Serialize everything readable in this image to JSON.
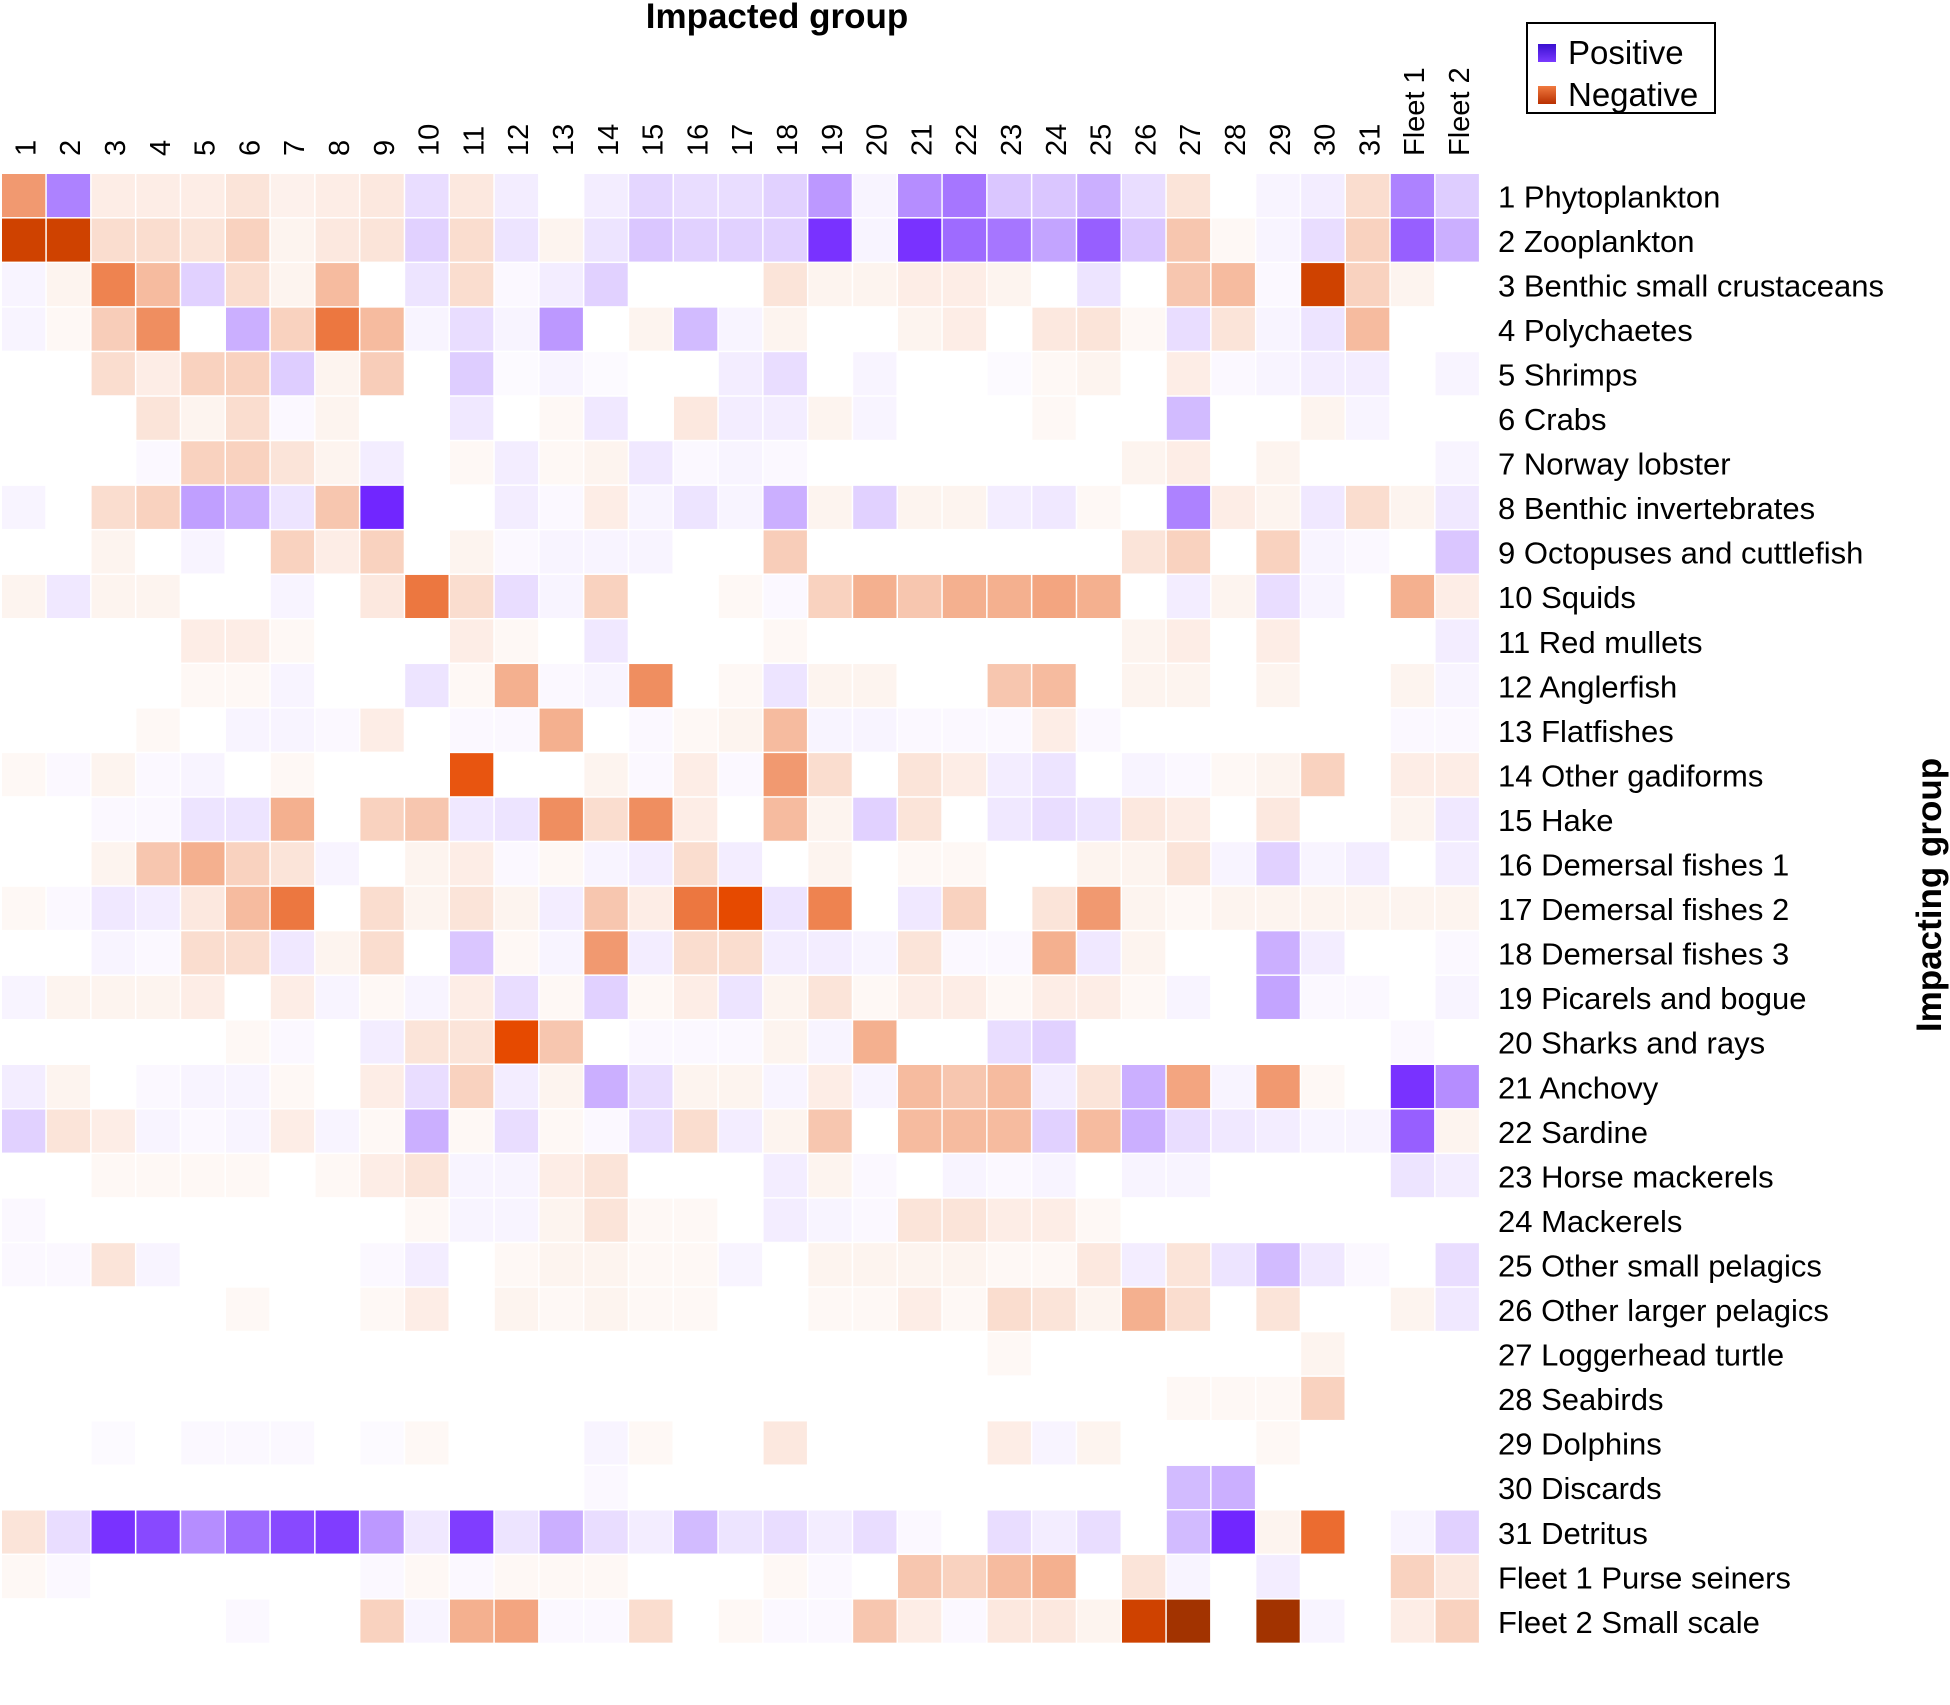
{
  "chart_data": {
    "type": "heatmap",
    "title": "Impacted group",
    "xlabel": "Impacted group",
    "ylabel": "Impacting group",
    "columns": [
      "1",
      "2",
      "3",
      "4",
      "5",
      "6",
      "7",
      "8",
      "9",
      "10",
      "11",
      "12",
      "13",
      "14",
      "15",
      "16",
      "17",
      "18",
      "19",
      "20",
      "21",
      "22",
      "23",
      "24",
      "25",
      "26",
      "27",
      "28",
      "29",
      "30",
      "31",
      "Fleet 1",
      "Fleet 2"
    ],
    "rows": [
      "1 Phytoplankton",
      "2 Zooplankton",
      "3 Benthic small crustaceans",
      "4 Polychaetes",
      "5 Shrimps",
      "6 Crabs",
      "7 Norway lobster",
      "8 Benthic invertebrates",
      "9 Octopuses and cuttlefish",
      "10 Squids",
      "11 Red mullets",
      "12 Anglerfish",
      "13 Flatfishes",
      "14 Other gadiforms",
      "15 Hake",
      "16 Demersal fishes 1",
      "17 Demersal fishes 2",
      "18 Demersal fishes 3",
      "19 Picarels and bogue",
      "20 Sharks and rays",
      "21 Anchovy",
      "22 Sardine",
      "23 Horse mackerels",
      "24 Mackerels",
      "25 Other small pelagics",
      "26 Other larger pelagics",
      "27 Loggerhead turtle",
      "28 Seabirds",
      "29 Dolphins",
      "30 Discards",
      "31 Detritus",
      "Fleet 1 Purse seiners",
      "Fleet 2 Small scale"
    ],
    "value_range": [
      -1,
      1
    ],
    "values": [
      [
        -0.45,
        0.55,
        -0.08,
        -0.08,
        -0.08,
        -0.12,
        -0.06,
        -0.08,
        -0.1,
        0.15,
        -0.1,
        0.08,
        0,
        0.08,
        0.18,
        0.15,
        0.15,
        0.2,
        0.45,
        0.05,
        0.5,
        0.6,
        0.25,
        0.25,
        0.35,
        0.15,
        -0.12,
        0,
        0.05,
        0.08,
        -0.15,
        0.55,
        0.22
      ],
      [
        -0.85,
        -0.85,
        -0.15,
        -0.15,
        -0.12,
        -0.2,
        -0.05,
        -0.1,
        -0.12,
        0.2,
        -0.15,
        0.12,
        -0.05,
        0.12,
        0.25,
        0.2,
        0.2,
        0.2,
        0.9,
        0.05,
        0.9,
        0.65,
        0.6,
        0.4,
        0.7,
        0.25,
        -0.25,
        -0.03,
        0.05,
        0.15,
        -0.2,
        0.7,
        0.35
      ],
      [
        0.05,
        -0.05,
        -0.55,
        -0.3,
        0.2,
        -0.15,
        -0.05,
        -0.3,
        0,
        0.12,
        -0.15,
        0.03,
        0.08,
        0.2,
        0,
        0,
        0,
        -0.12,
        -0.05,
        -0.05,
        -0.08,
        -0.08,
        -0.05,
        0,
        0.12,
        0,
        -0.25,
        -0.3,
        0.03,
        -0.85,
        -0.2,
        -0.05,
        0
      ],
      [
        0.05,
        -0.03,
        -0.22,
        -0.5,
        0,
        0.35,
        -0.2,
        -0.6,
        -0.3,
        0.05,
        0.15,
        0.05,
        0.45,
        0,
        -0.05,
        0.3,
        0.05,
        -0.05,
        0,
        0,
        -0.05,
        -0.08,
        0,
        -0.1,
        -0.12,
        -0.03,
        0.15,
        -0.12,
        0.05,
        0.12,
        -0.3,
        0,
        0
      ],
      [
        0,
        0,
        -0.15,
        -0.08,
        -0.2,
        -0.2,
        0.22,
        -0.05,
        -0.22,
        0,
        0.22,
        0.02,
        0.05,
        0.02,
        0,
        0,
        0.08,
        0.15,
        0,
        0.05,
        0,
        0,
        0.02,
        -0.03,
        -0.05,
        0,
        -0.08,
        0.03,
        0.05,
        0.08,
        0.08,
        0,
        0.05
      ],
      [
        0,
        0,
        0,
        -0.12,
        -0.05,
        -0.15,
        0.03,
        -0.05,
        0,
        0,
        0.1,
        0,
        -0.03,
        0.1,
        0,
        -0.1,
        0.08,
        0.08,
        -0.05,
        0.05,
        0,
        0,
        0,
        -0.03,
        0,
        0,
        0.3,
        0,
        0,
        -0.05,
        0.05,
        0,
        0
      ],
      [
        0,
        0,
        0,
        0.03,
        -0.2,
        -0.2,
        -0.12,
        -0.05,
        0.08,
        0,
        -0.03,
        0.08,
        -0.03,
        -0.05,
        0.1,
        0.03,
        0.05,
        0.03,
        0,
        0,
        0,
        0,
        0,
        0,
        0,
        -0.05,
        -0.08,
        0,
        -0.05,
        0,
        0,
        0,
        0.05
      ],
      [
        0.05,
        0,
        -0.15,
        -0.2,
        0.42,
        0.35,
        0.12,
        -0.25,
        0.95,
        0,
        0,
        0.08,
        0.03,
        -0.08,
        0.05,
        0.12,
        0.05,
        0.35,
        -0.05,
        0.2,
        -0.05,
        -0.05,
        0.08,
        0.1,
        -0.03,
        0,
        0.55,
        -0.08,
        -0.05,
        0.1,
        -0.15,
        -0.05,
        0.1
      ],
      [
        0,
        0,
        -0.05,
        0,
        0.05,
        0,
        -0.2,
        -0.08,
        -0.2,
        0,
        -0.05,
        0.03,
        0.05,
        0.05,
        0.05,
        0,
        0,
        -0.22,
        0,
        0,
        0,
        0,
        0,
        0,
        0,
        -0.12,
        -0.2,
        0,
        -0.2,
        0.05,
        0.03,
        0,
        0.25
      ],
      [
        -0.05,
        0.1,
        -0.05,
        -0.05,
        0,
        0,
        0.05,
        0,
        -0.1,
        -0.6,
        -0.15,
        0.15,
        0.05,
        -0.2,
        0,
        0,
        -0.03,
        0.03,
        -0.2,
        -0.35,
        -0.25,
        -0.35,
        -0.35,
        -0.4,
        -0.35,
        0,
        0.08,
        -0.05,
        0.15,
        0.05,
        0,
        -0.35,
        -0.08
      ],
      [
        0,
        0,
        0,
        0,
        -0.08,
        -0.08,
        -0.03,
        0,
        0,
        0,
        -0.08,
        -0.03,
        0,
        0.1,
        0,
        0,
        0,
        -0.03,
        0,
        0,
        0,
        0,
        0,
        0,
        0,
        -0.05,
        -0.08,
        0,
        -0.08,
        0,
        0,
        0,
        0.08
      ],
      [
        0,
        0,
        0,
        0,
        -0.03,
        -0.03,
        0.05,
        0,
        0,
        0.12,
        -0.03,
        -0.35,
        0.03,
        0.05,
        -0.5,
        0,
        -0.03,
        0.12,
        -0.05,
        -0.05,
        0,
        0,
        -0.25,
        -0.3,
        0,
        -0.05,
        -0.05,
        0,
        -0.05,
        0,
        0,
        -0.05,
        0.05
      ],
      [
        0,
        0,
        0,
        -0.03,
        0,
        0.05,
        0.05,
        0.03,
        -0.08,
        0,
        0.03,
        0.03,
        -0.35,
        0,
        0.03,
        -0.03,
        -0.05,
        -0.3,
        0.05,
        0.05,
        0.03,
        0.03,
        0.03,
        -0.08,
        0.03,
        0,
        0,
        0,
        0,
        0,
        0,
        0.03,
        0.03
      ],
      [
        -0.03,
        0.03,
        -0.05,
        0.03,
        0.05,
        0,
        -0.03,
        0,
        0,
        0,
        -0.75,
        0,
        0,
        -0.05,
        0.03,
        -0.08,
        0.03,
        -0.45,
        -0.15,
        0,
        -0.12,
        -0.08,
        0.08,
        0.12,
        0,
        0.05,
        0.03,
        -0.03,
        -0.05,
        -0.2,
        0,
        -0.08,
        -0.08
      ],
      [
        0,
        0,
        0.03,
        0.03,
        0.12,
        0.12,
        -0.35,
        0,
        -0.2,
        -0.25,
        0.1,
        0.12,
        -0.5,
        -0.15,
        -0.5,
        -0.08,
        0,
        -0.3,
        -0.05,
        0.2,
        -0.12,
        0,
        0.1,
        0.15,
        0.12,
        -0.1,
        -0.08,
        0,
        -0.1,
        0,
        0,
        -0.05,
        0.1
      ],
      [
        0,
        0,
        -0.05,
        -0.25,
        -0.35,
        -0.2,
        -0.12,
        0.05,
        0,
        -0.05,
        -0.08,
        0.03,
        -0.03,
        0.05,
        0.08,
        -0.15,
        0.08,
        0,
        -0.05,
        0,
        -0.03,
        -0.03,
        0,
        0,
        -0.05,
        -0.05,
        -0.12,
        0.05,
        0.2,
        0.05,
        0.08,
        0,
        0.08
      ],
      [
        -0.03,
        0.03,
        0.1,
        0.08,
        -0.1,
        -0.3,
        -0.6,
        0,
        -0.15,
        -0.05,
        -0.12,
        -0.05,
        0.08,
        -0.25,
        -0.08,
        -0.6,
        -0.8,
        0.12,
        -0.55,
        0,
        0.1,
        -0.2,
        0,
        -0.12,
        -0.45,
        -0.05,
        -0.03,
        -0.05,
        -0.05,
        -0.05,
        -0.05,
        -0.05,
        -0.05
      ],
      [
        0,
        0,
        0.05,
        0.03,
        -0.15,
        -0.15,
        0.1,
        -0.05,
        -0.15,
        0,
        0.25,
        -0.03,
        0.05,
        -0.45,
        0.08,
        -0.15,
        -0.15,
        0.08,
        0.08,
        0.05,
        -0.12,
        0.03,
        0.03,
        -0.35,
        0.1,
        -0.05,
        0,
        0,
        0.35,
        0.08,
        0,
        0,
        0.03
      ],
      [
        0.05,
        -0.05,
        -0.05,
        -0.05,
        -0.08,
        0,
        -0.08,
        0.05,
        -0.03,
        0.05,
        -0.08,
        0.15,
        -0.03,
        0.2,
        -0.03,
        -0.08,
        0.12,
        -0.05,
        -0.12,
        -0.03,
        -0.08,
        -0.08,
        -0.03,
        -0.08,
        -0.08,
        -0.03,
        0.05,
        0,
        0.4,
        0.03,
        0.03,
        0,
        0.05
      ],
      [
        0,
        0,
        0,
        0,
        0,
        -0.03,
        0.03,
        0,
        0.08,
        -0.12,
        -0.12,
        -0.8,
        -0.25,
        0,
        0.03,
        0.03,
        0.03,
        -0.05,
        0.05,
        -0.35,
        0,
        0,
        0.15,
        0.2,
        0,
        0,
        0,
        0,
        0,
        0,
        0,
        0.03,
        0
      ],
      [
        0.08,
        -0.05,
        0,
        0.03,
        0.05,
        0.05,
        -0.03,
        0,
        -0.08,
        0.15,
        -0.2,
        0.08,
        -0.05,
        0.35,
        0.15,
        -0.05,
        -0.05,
        0.05,
        -0.08,
        0.05,
        -0.3,
        -0.25,
        -0.3,
        0.08,
        -0.12,
        0.35,
        -0.4,
        0.05,
        -0.45,
        -0.03,
        0,
        0.9,
        0.5
      ],
      [
        0.2,
        -0.12,
        -0.08,
        0.05,
        0.03,
        0.05,
        -0.08,
        0.05,
        -0.03,
        0.35,
        -0.03,
        0.15,
        -0.03,
        0.03,
        0.15,
        -0.15,
        0.08,
        -0.05,
        -0.25,
        0,
        -0.3,
        -0.3,
        -0.3,
        0.2,
        -0.3,
        0.35,
        0.15,
        0.1,
        0.08,
        0.05,
        0.05,
        0.7,
        -0.05
      ],
      [
        0,
        0,
        -0.03,
        -0.03,
        -0.03,
        -0.03,
        0,
        -0.03,
        -0.08,
        -0.12,
        0.05,
        0.05,
        -0.08,
        -0.12,
        0,
        0,
        0,
        0.08,
        -0.05,
        0.03,
        0,
        0.05,
        0.03,
        0.05,
        0,
        0.05,
        0.05,
        0,
        0,
        0,
        0,
        0.12,
        0.08
      ],
      [
        0.03,
        0,
        0,
        0,
        0,
        0,
        0,
        0,
        0,
        -0.03,
        0.05,
        0.05,
        -0.05,
        -0.12,
        -0.03,
        -0.03,
        0,
        0.08,
        0.05,
        0.03,
        -0.12,
        -0.12,
        -0.08,
        -0.08,
        -0.03,
        0,
        0,
        0,
        0,
        0,
        0,
        0,
        0
      ],
      [
        0.03,
        0.03,
        -0.12,
        0.05,
        0,
        0,
        0,
        0,
        0.03,
        0.08,
        0,
        -0.03,
        -0.05,
        -0.05,
        -0.03,
        -0.03,
        0.05,
        0,
        -0.05,
        -0.05,
        -0.05,
        -0.05,
        -0.03,
        -0.03,
        -0.1,
        0.08,
        -0.12,
        0.12,
        0.3,
        0.1,
        0.03,
        0,
        0.15
      ],
      [
        0,
        0,
        0,
        0,
        0,
        -0.03,
        0,
        0,
        -0.03,
        -0.08,
        0,
        -0.05,
        -0.03,
        -0.05,
        -0.03,
        -0.03,
        0,
        0,
        -0.03,
        -0.03,
        -0.08,
        -0.03,
        -0.15,
        -0.12,
        -0.05,
        -0.35,
        -0.15,
        0,
        -0.12,
        0,
        0,
        -0.05,
        0.1
      ],
      [
        0,
        0,
        0,
        0,
        0,
        0,
        0,
        0,
        0,
        0,
        0,
        0,
        0,
        0,
        0,
        0,
        0,
        0,
        0,
        0,
        0,
        0,
        -0.03,
        0,
        0,
        0,
        0,
        0,
        0,
        -0.05,
        0,
        0,
        0
      ],
      [
        0,
        0,
        0,
        0,
        0,
        0,
        0,
        0,
        0,
        0,
        0,
        0,
        0,
        0,
        0,
        0,
        0,
        0,
        0,
        0,
        0,
        0,
        0,
        0,
        0,
        0,
        -0.03,
        -0.03,
        -0.03,
        -0.2,
        0,
        0,
        0
      ],
      [
        0,
        0,
        0.02,
        0,
        0.03,
        0.03,
        0.03,
        0,
        0.02,
        -0.03,
        0,
        0,
        0,
        0.05,
        -0.03,
        0,
        0,
        -0.1,
        0,
        0,
        0,
        0,
        -0.08,
        0.05,
        -0.05,
        0,
        0,
        0,
        -0.03,
        0,
        0,
        0,
        0
      ],
      [
        0,
        0,
        0,
        0,
        0,
        0,
        0,
        0,
        0,
        0,
        0,
        0,
        0,
        0.03,
        0,
        0,
        0,
        0,
        0,
        0,
        0,
        0,
        0,
        0,
        0,
        0,
        0.3,
        0.35,
        0,
        0,
        0,
        0,
        0
      ],
      [
        -0.12,
        0.15,
        0.9,
        0.8,
        0.5,
        0.65,
        0.8,
        0.85,
        0.45,
        0.1,
        0.85,
        0.12,
        0.35,
        0.15,
        0.08,
        0.3,
        0.12,
        0.15,
        0.08,
        0.15,
        0.03,
        0,
        0.15,
        0.08,
        0.15,
        0,
        0.3,
        0.95,
        -0.05,
        -0.65,
        0,
        0.05,
        0.2
      ],
      [
        -0.03,
        0.03,
        0,
        0,
        0,
        0,
        0,
        0,
        0.03,
        -0.03,
        0.03,
        -0.03,
        -0.03,
        -0.03,
        0,
        0,
        0,
        -0.03,
        0.03,
        0,
        -0.25,
        -0.2,
        -0.3,
        -0.35,
        0,
        -0.12,
        0.05,
        0,
        0.08,
        0,
        0,
        -0.2,
        -0.1
      ],
      [
        0,
        0,
        0,
        0,
        0,
        0.03,
        0,
        0,
        -0.2,
        0.05,
        -0.35,
        -0.4,
        0.03,
        0.03,
        -0.15,
        0,
        -0.03,
        0.03,
        0.03,
        -0.25,
        -0.08,
        0.03,
        -0.1,
        -0.1,
        -0.05,
        -0.85,
        -0.95,
        0,
        -0.95,
        0.05,
        0,
        -0.08,
        -0.2
      ]
    ],
    "colors": {
      "positive": "#6a1bff",
      "negative": "#e64a00",
      "deep_negative": "#8b2b00",
      "neutral": "#ffffff"
    },
    "legend": {
      "position": "top-right",
      "items": [
        {
          "label": "Positive",
          "color": "#5a18f5"
        },
        {
          "label": "Negative",
          "color": "#e04a10"
        }
      ]
    }
  }
}
